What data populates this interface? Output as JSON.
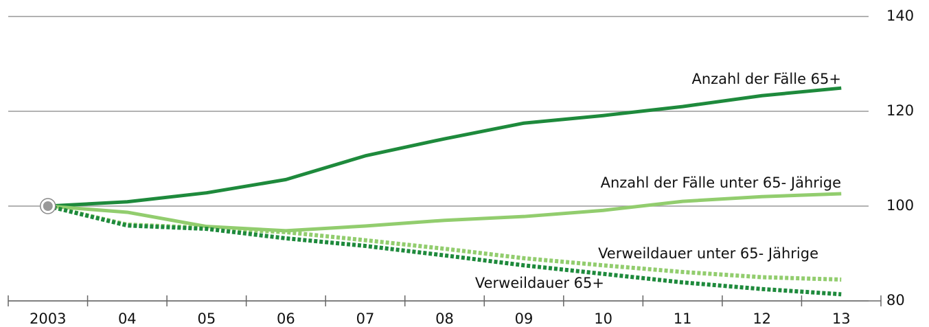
{
  "chart_data": {
    "type": "line",
    "categories": [
      "2003",
      "04",
      "05",
      "06",
      "07",
      "08",
      "09",
      "10",
      "11",
      "12",
      "13"
    ],
    "series": [
      {
        "name": "Anzahl der Fälle 65+",
        "color": "#1e8a3c",
        "dash": false,
        "values": [
          100,
          100.9,
          102.8,
          105.6,
          110.6,
          114.2,
          117.5,
          119.1,
          121,
          123.3,
          124.9
        ]
      },
      {
        "name": "Anzahl der Fälle unter 65- Jährige",
        "color": "#92cd6e",
        "dash": false,
        "values": [
          100,
          98.7,
          95.7,
          94.8,
          95.8,
          97,
          97.8,
          99.1,
          101,
          102,
          102.6
        ]
      },
      {
        "name": "Verweildauer unter 65- Jährige",
        "color": "#92cd6e",
        "dash": true,
        "values": [
          100,
          96.1,
          95.4,
          94.5,
          92.8,
          91,
          89,
          87.5,
          86.1,
          85,
          84.5
        ]
      },
      {
        "name": "Verweildauer 65+",
        "color": "#1e8a3c",
        "dash": true,
        "values": [
          100,
          95.9,
          95.2,
          93.2,
          91.6,
          89.6,
          87.5,
          85.7,
          83.9,
          82.5,
          81.4
        ]
      }
    ],
    "ylim": [
      80,
      140
    ],
    "yticks": [
      80,
      100,
      120,
      140
    ],
    "grid": true
  }
}
